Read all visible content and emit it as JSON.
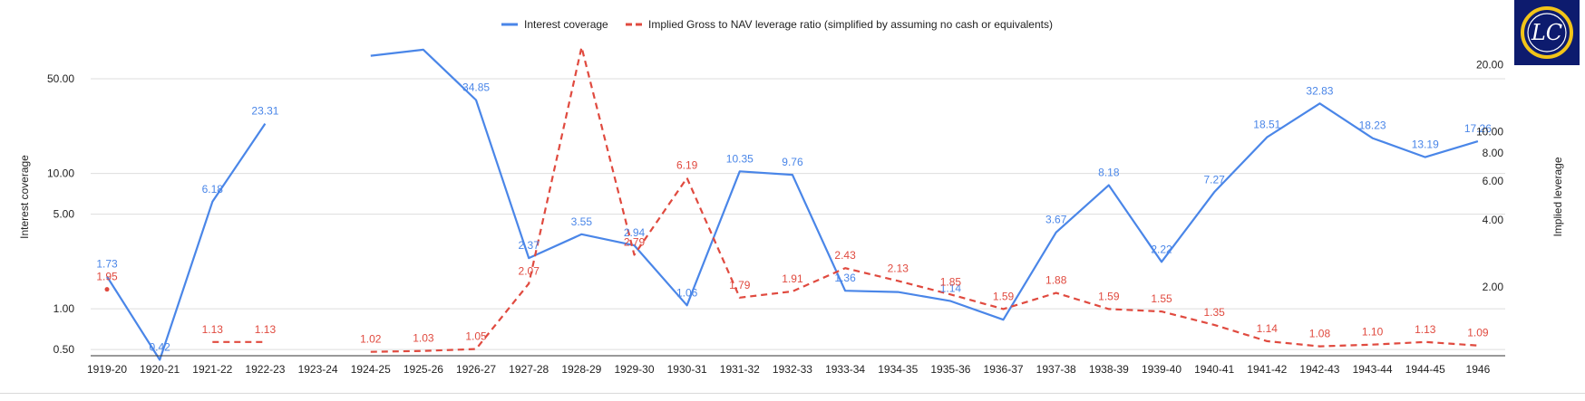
{
  "chart_data": {
    "type": "line",
    "title": "",
    "categories": [
      "1919-20",
      "1920-21",
      "1921-22",
      "1922-23",
      "1923-24",
      "1924-25",
      "1925-26",
      "1926-27",
      "1927-28",
      "1928-29",
      "1929-30",
      "1930-31",
      "1931-32",
      "1932-33",
      "1933-34",
      "1934-35",
      "1935-36",
      "1936-37",
      "1937-38",
      "1938-39",
      "1939-40",
      "1940-41",
      "1941-42",
      "1942-43",
      "1943-44",
      "1944-45",
      "1946"
    ],
    "xlabel": "",
    "y_left": {
      "label": "Interest coverage",
      "scale": "log",
      "ylim": [
        0.45,
        100
      ],
      "ticks": [
        0.5,
        1,
        5,
        10,
        50
      ],
      "tick_labels": [
        "0.50",
        "1.00",
        "5.00",
        "10.00",
        "50.00"
      ]
    },
    "y_right": {
      "label": "Implied leverage",
      "scale": "log",
      "ylim": [
        0.98,
        26.4
      ],
      "ticks": [
        2,
        4,
        6,
        8,
        10,
        20
      ],
      "tick_labels": [
        "2.00",
        "4.00",
        "6.00",
        "8.00",
        "10.00",
        "20.00"
      ]
    },
    "grid": true,
    "legend_position": "top",
    "series": [
      {
        "name": "Interest coverage",
        "axis": "left",
        "color": "#4a86e8",
        "style": "solid",
        "values": [
          1.73,
          0.42,
          6.18,
          23.31,
          null,
          74,
          82,
          34.85,
          2.37,
          3.55,
          2.94,
          1.06,
          10.35,
          9.76,
          1.36,
          1.33,
          1.14,
          0.83,
          3.67,
          8.18,
          2.22,
          7.27,
          18.51,
          32.83,
          18.23,
          13.19,
          17.26
        ],
        "labels": [
          "1.73",
          "0.42",
          "6.18",
          "23.31",
          "",
          "",
          "",
          "34.85",
          "2.37",
          "3.55",
          "2.94",
          "1.06",
          "10.35",
          "9.76",
          "1.36",
          "",
          "1.14",
          "",
          "3.67",
          "8.18",
          "2.22",
          "7.27",
          "18.51",
          "32.83",
          "18.23",
          "13.19",
          "17.26"
        ]
      },
      {
        "name": "Implied Gross to NAV leverage ratio (simplified by assuming no cash or equivalents)",
        "axis": "right",
        "color": "#e04a3f",
        "style": "dashed",
        "values": [
          1.95,
          null,
          1.13,
          1.13,
          null,
          1.02,
          1.03,
          1.05,
          2.07,
          24,
          2.79,
          6.19,
          1.79,
          1.91,
          2.43,
          2.13,
          1.85,
          1.59,
          1.88,
          1.59,
          1.55,
          1.35,
          1.14,
          1.08,
          1.1,
          1.13,
          1.09
        ],
        "labels": [
          "1.95",
          "",
          "1.13",
          "1.13",
          "",
          "1.02",
          "1.03",
          "1.05",
          "2.07",
          "",
          "2.79",
          "6.19",
          "1.79",
          "1.91",
          "2.43",
          "2.13",
          "1.85",
          "1.59",
          "1.88",
          "1.59",
          "1.55",
          "1.35",
          "1.14",
          "1.08",
          "1.10",
          "1.13",
          "1.09"
        ]
      }
    ]
  },
  "logo": {
    "text": "LC",
    "background": "#0d1b6e",
    "ring_color": "#f2c418"
  }
}
